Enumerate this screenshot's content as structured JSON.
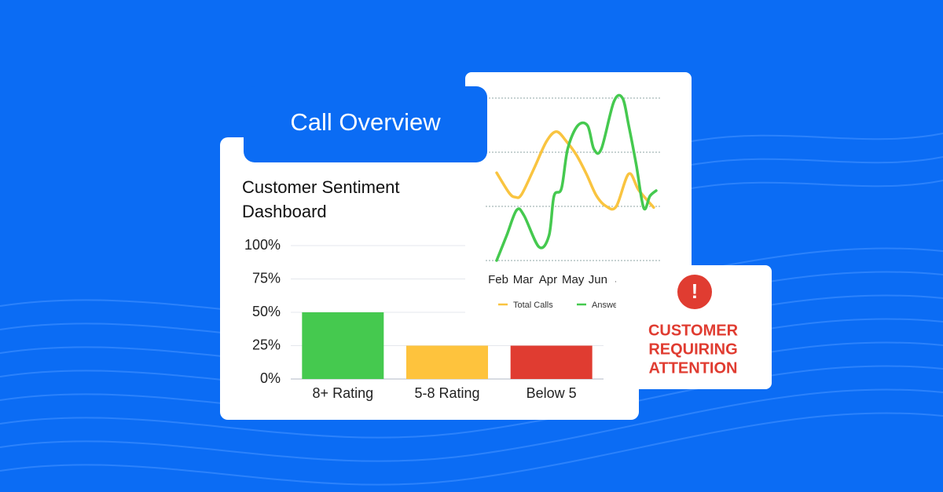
{
  "header": {
    "title": "Call Overview"
  },
  "alert": {
    "lines": [
      "CUSTOMER",
      "REQUIRING",
      "ATTENTION"
    ],
    "icon": "!"
  },
  "chart_data": [
    {
      "type": "bar",
      "title": [
        "Customer Sentiment",
        "Dashboard"
      ],
      "categories": [
        "8+ Rating",
        "5-8 Rating",
        "Below 5"
      ],
      "values": [
        50,
        25,
        25
      ],
      "colors": [
        "#45c94f",
        "#fec33d",
        "#e03c31"
      ],
      "ylim": [
        0,
        100
      ],
      "yticks": [
        {
          "value": 0,
          "label": "0%"
        },
        {
          "value": 25,
          "label": "25%"
        },
        {
          "value": 50,
          "label": "50%"
        },
        {
          "value": 75,
          "label": "75%"
        },
        {
          "value": 100,
          "label": "100%"
        }
      ],
      "grid": true
    },
    {
      "type": "line",
      "xlim": [
        0,
        6.4
      ],
      "ylim": [
        0,
        3
      ],
      "xticks": [
        {
          "value": 0,
          "label": "Feb"
        },
        {
          "value": 1,
          "label": "Mar"
        },
        {
          "value": 2,
          "label": "Apr"
        },
        {
          "value": 3,
          "label": "May"
        },
        {
          "value": 4,
          "label": "Jun"
        },
        {
          "value": 5,
          "label": "Jul"
        }
      ],
      "series": [
        {
          "name": "Total Calls",
          "color": "#f9c440",
          "x": [
            0,
            0.5,
            0.75,
            1.0,
            1.5,
            2.0,
            2.4,
            2.8,
            3.2,
            3.6,
            4.0,
            4.4,
            4.8,
            5.3,
            5.7,
            6.3
          ],
          "values": [
            1.62,
            1.25,
            1.17,
            1.22,
            1.7,
            2.2,
            2.38,
            2.2,
            1.95,
            1.6,
            1.2,
            1.0,
            1.0,
            1.6,
            1.3,
            0.98
          ]
        },
        {
          "name": "Answered Calls",
          "color": "#45c94f",
          "x": [
            0,
            0.4,
            0.8,
            1.1,
            1.7,
            2.1,
            2.3,
            2.6,
            2.85,
            3.25,
            3.65,
            3.9,
            4.2,
            4.7,
            5.05,
            5.3,
            5.6,
            5.9,
            6.15,
            6.4
          ],
          "values": [
            0,
            0.46,
            0.93,
            0.83,
            0.25,
            0.46,
            1.19,
            1.33,
            2.06,
            2.49,
            2.49,
            2.06,
            2.06,
            2.93,
            3.0,
            2.49,
            1.77,
            0.97,
            1.19,
            1.29
          ]
        }
      ],
      "grid": true
    }
  ]
}
